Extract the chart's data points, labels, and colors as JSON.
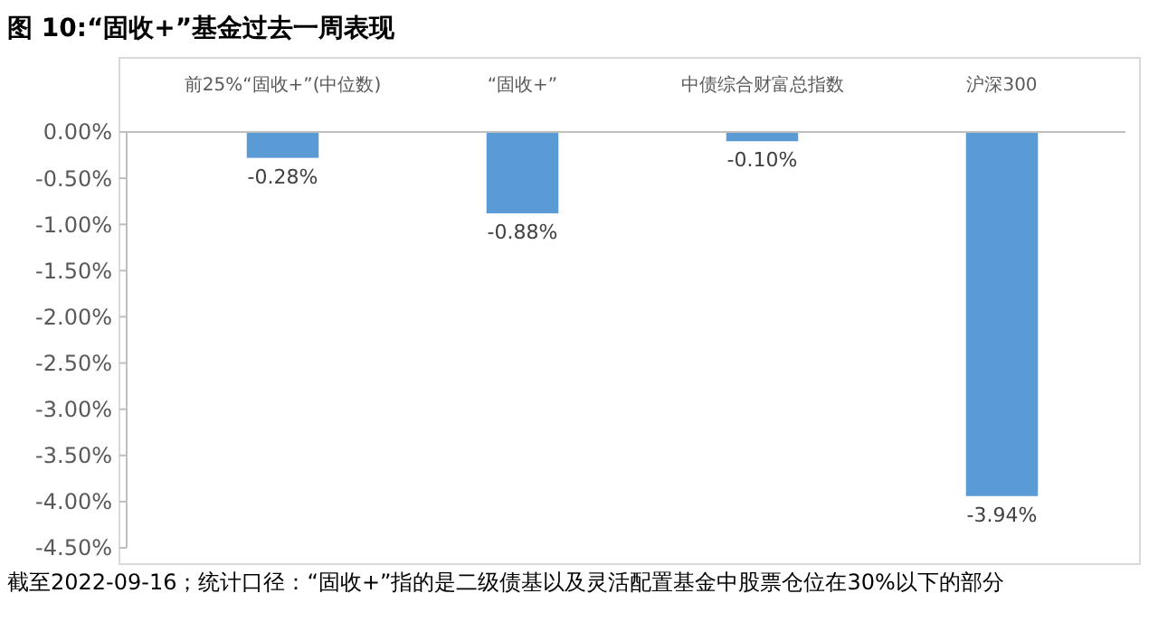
{
  "chart_data": {
    "type": "bar",
    "title": "图 10:“固收+”基金过去一周表现",
    "categories": [
      "前25%“固收+”(中位数)",
      "“固收+”",
      "中债综合财富总指数",
      "沪深300"
    ],
    "values": [
      -0.28,
      -0.88,
      -0.1,
      -3.94
    ],
    "value_labels": [
      "-0.28%",
      "-0.88%",
      "-0.10%",
      "-3.94%"
    ],
    "color": "#5b9bd5",
    "ylim": [
      -4.5,
      0
    ],
    "yticks": [
      {
        "value": 0,
        "label": "0.00%"
      },
      {
        "value": -0.5,
        "label": "-0.50%"
      },
      {
        "value": -1,
        "label": "-1.00%"
      },
      {
        "value": -1.5,
        "label": "-1.50%"
      },
      {
        "value": -2,
        "label": "-2.00%"
      },
      {
        "value": -2.5,
        "label": "-2.50%"
      },
      {
        "value": -3,
        "label": "-3.00%"
      },
      {
        "value": -3.5,
        "label": "-3.50%"
      },
      {
        "value": -4,
        "label": "-4.00%"
      },
      {
        "value": -4.5,
        "label": "-4.50%"
      }
    ],
    "grid": false,
    "annotations": [
      "截至2022-09-16；统计口径：“固收+”指的是二级债基以及灵活配置基金中股票仓位在30%以下的部分"
    ]
  }
}
